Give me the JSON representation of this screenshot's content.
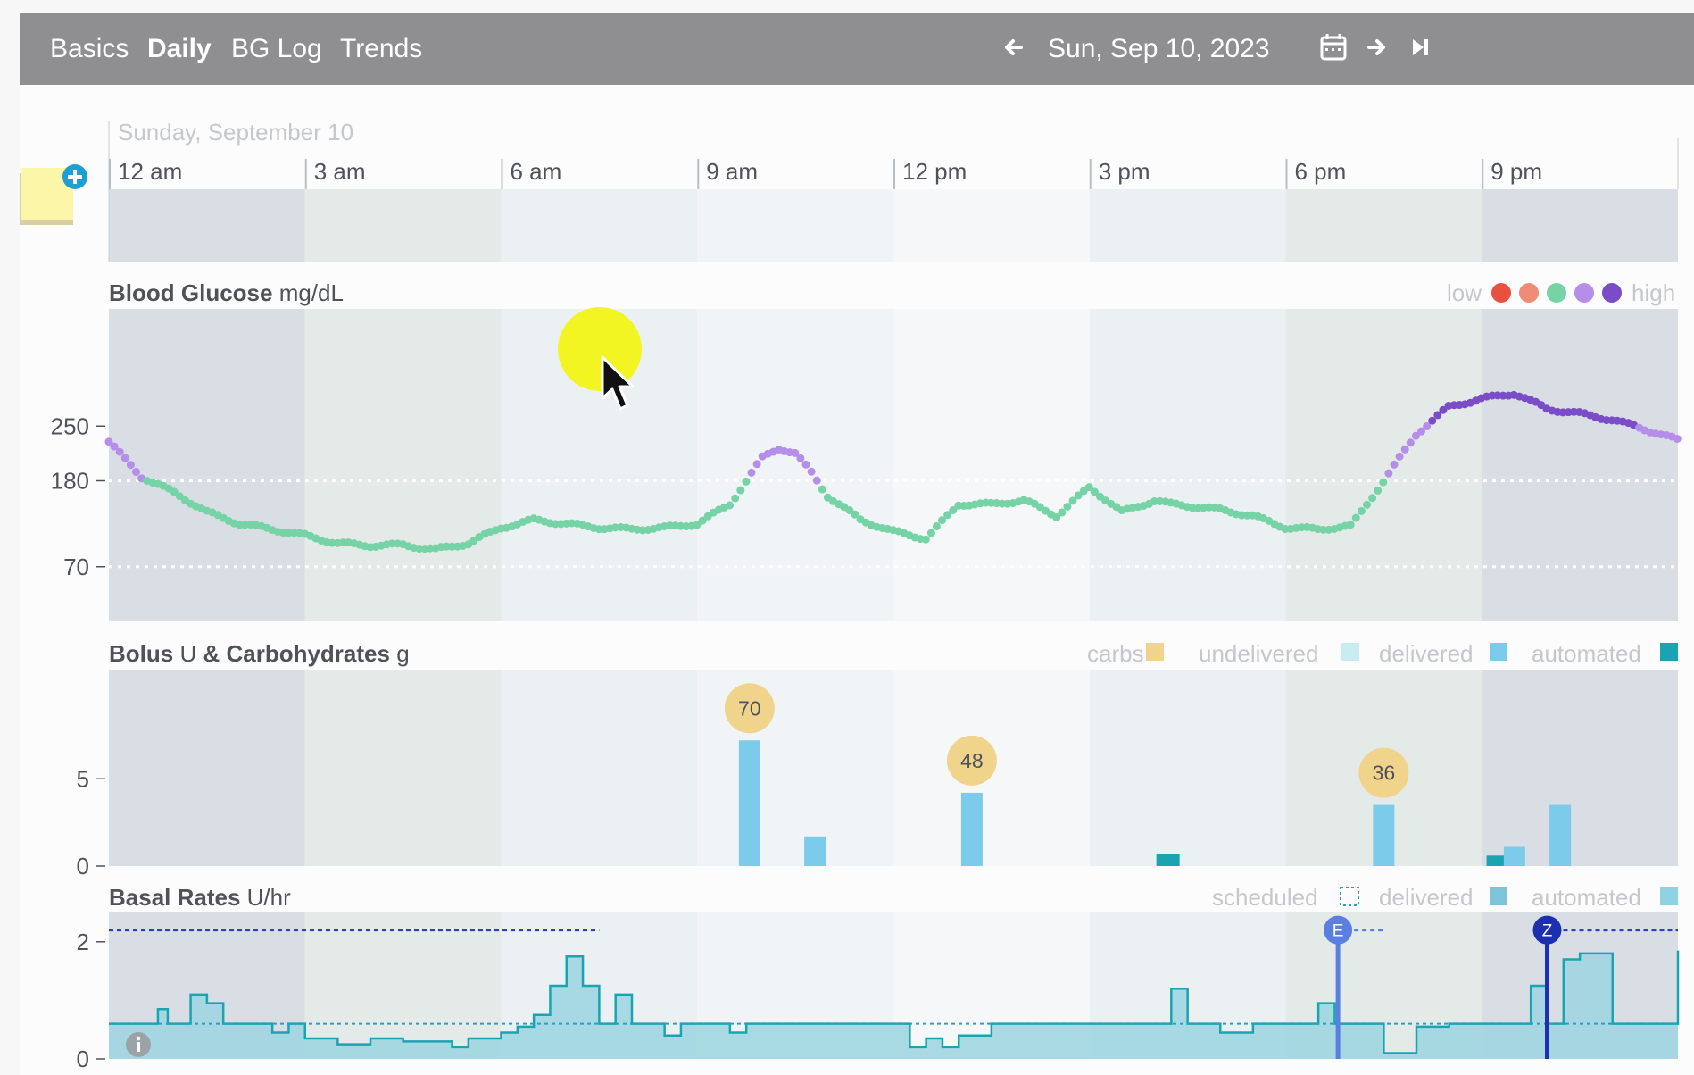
{
  "nav": {
    "tabs": [
      {
        "label": "Basics"
      },
      {
        "label": "Daily"
      },
      {
        "label": "BG Log"
      },
      {
        "label": "Trends"
      }
    ],
    "active_tab": "Daily",
    "date": "Sun, Sep 10, 2023",
    "icons": [
      "arrow-left-icon",
      "calendar-icon",
      "arrow-right-icon",
      "skip-to-end-icon"
    ]
  },
  "timeline": {
    "day_label": "Sunday, September 10",
    "hour_labels": [
      "12 am",
      "3 am",
      "6 am",
      "9 am",
      "12 pm",
      "3 pm",
      "6 pm",
      "9 pm"
    ]
  },
  "bg_panel": {
    "title": "Blood Glucose",
    "unit": "mg/dL",
    "legend_low": "low",
    "legend_high": "high",
    "legend_colors": [
      "#e8513f",
      "#ef8b76",
      "#76d3a6",
      "#b48ee8",
      "#7b4cc8"
    ],
    "y_ticks": [
      "250",
      "180",
      "70"
    ],
    "target_low": 70,
    "target_high": 180
  },
  "bolus_panel": {
    "title": "Bolus",
    "unit": "U",
    "connector": "&",
    "title2": "Carbohydrates",
    "unit2": "g",
    "legend": [
      {
        "label": "carbs",
        "color": "#f1d48c"
      },
      {
        "label": "undelivered",
        "color": "#c9ecf3"
      },
      {
        "label": "delivered",
        "color": "#7ccbea"
      },
      {
        "label": "automated",
        "color": "#1aa4b2"
      }
    ],
    "y_ticks": [
      "5",
      "0"
    ],
    "carb_labels": [
      "70",
      "48",
      "36"
    ]
  },
  "basal_panel": {
    "title": "Basal Rates",
    "unit": "U/hr",
    "legend": [
      {
        "label": "scheduled",
        "color": "#2a9fc4"
      },
      {
        "label": "delivered",
        "color": "#7ec4d9"
      },
      {
        "label": "automated",
        "color": "#8fd3e3"
      }
    ],
    "y_ticks": [
      "2",
      "0"
    ],
    "markers": [
      "E",
      "Z"
    ]
  },
  "chart_data": [
    {
      "type": "scatter",
      "title": "Blood Glucose",
      "unit": "mg/dL",
      "x_unit": "hour of day",
      "xlim": [
        0,
        24
      ],
      "ylim": [
        0,
        400
      ],
      "x": [
        0,
        0.5,
        1,
        1.5,
        2,
        2.5,
        3,
        3.5,
        4,
        4.5,
        5,
        5.5,
        6,
        6.5,
        7,
        7.5,
        8,
        8.5,
        9,
        9.5,
        10,
        10.25,
        10.5,
        10.75,
        11,
        11.5,
        12,
        12.5,
        13,
        13.5,
        14,
        14.5,
        15,
        15.5,
        16,
        16.25,
        16.5,
        17,
        17.5,
        18,
        18.5,
        19,
        19.5,
        20,
        20.5,
        21,
        21.5,
        22,
        22.5,
        23,
        23.5,
        24
      ],
      "y": [
        230,
        185,
        165,
        140,
        125,
        118,
        110,
        100,
        97,
        98,
        92,
        100,
        120,
        130,
        125,
        120,
        118,
        120,
        125,
        150,
        210,
        222,
        215,
        190,
        160,
        130,
        115,
        106,
        150,
        150,
        155,
        135,
        172,
        140,
        155,
        150,
        148,
        143,
        135,
        120,
        118,
        122,
        180,
        240,
        275,
        285,
        292,
        272,
        266,
        258,
        246,
        232
      ],
      "series_colors_by_range": {
        "in_range": "#76d3a6",
        "high": "#b48ee8",
        "very_high": "#7b4cc8"
      }
    },
    {
      "type": "bar",
      "title": "Bolus U & Carbohydrates g",
      "x_unit": "hour of day",
      "ylim": [
        0,
        11
      ],
      "boluses": [
        {
          "hour": 9.8,
          "value": 7.2,
          "kind": "delivered"
        },
        {
          "hour": 10.8,
          "value": 1.7,
          "kind": "delivered"
        },
        {
          "hour": 13.2,
          "value": 4.2,
          "kind": "delivered"
        },
        {
          "hour": 16.2,
          "value": 0.7,
          "kind": "automated"
        },
        {
          "hour": 19.5,
          "value": 3.5,
          "kind": "delivered"
        },
        {
          "hour": 21.25,
          "value": 0.6,
          "kind": "automated"
        },
        {
          "hour": 21.5,
          "value": 1.1,
          "kind": "delivered"
        },
        {
          "hour": 22.2,
          "value": 3.5,
          "kind": "delivered"
        }
      ],
      "carbs": [
        {
          "hour": 9.8,
          "grams": 70
        },
        {
          "hour": 13.2,
          "grams": 48
        },
        {
          "hour": 19.5,
          "grams": 36
        }
      ]
    },
    {
      "type": "area",
      "title": "Basal Rates U/hr",
      "x_unit": "hour of day",
      "ylim": [
        0,
        2.5
      ],
      "scheduled": 0.6,
      "x": [
        0,
        0.75,
        0.9,
        1.25,
        1.5,
        1.75,
        2,
        2.5,
        2.75,
        3,
        3.5,
        4,
        4.5,
        5,
        5.25,
        5.5,
        6,
        6.25,
        6.5,
        6.75,
        7,
        7.25,
        7.5,
        7.75,
        8,
        8.25,
        8.5,
        8.75,
        9,
        9.25,
        9.5,
        9.75,
        10,
        11,
        12,
        12.25,
        12.5,
        12.75,
        13,
        13.5,
        14,
        15,
        16,
        16.25,
        16.5,
        17,
        17.5,
        18,
        18.5,
        18.75,
        19,
        19.5,
        20,
        20.5,
        21,
        21.5,
        21.75,
        22,
        22.25,
        22.5,
        23,
        23.5,
        24
      ],
      "y": [
        0.6,
        0.85,
        0.6,
        1.1,
        0.95,
        0.6,
        0.6,
        0.45,
        0.6,
        0.35,
        0.25,
        0.35,
        0.3,
        0.3,
        0.2,
        0.35,
        0.45,
        0.55,
        0.75,
        1.25,
        1.75,
        1.25,
        0.6,
        1.1,
        0.6,
        0.6,
        0.4,
        0.6,
        0.6,
        0.6,
        0.45,
        0.6,
        0.6,
        0.6,
        0.6,
        0.2,
        0.35,
        0.2,
        0.4,
        0.6,
        0.6,
        0.6,
        0.6,
        1.2,
        0.6,
        0.45,
        0.6,
        0.6,
        0.95,
        0.6,
        0.6,
        0.1,
        0.55,
        0.6,
        0.6,
        0.6,
        1.25,
        0.6,
        1.7,
        1.8,
        0.6,
        0.6,
        1.85
      ],
      "markers": [
        {
          "label": "E",
          "hour": 18.8
        },
        {
          "label": "Z",
          "hour": 22.0
        }
      ]
    }
  ]
}
